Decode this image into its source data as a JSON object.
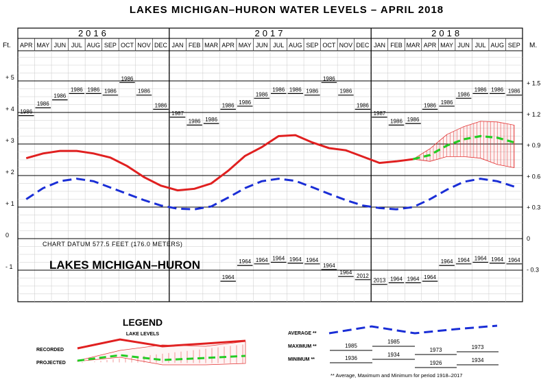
{
  "chart_data": {
    "type": "line",
    "title": "LAKES MICHIGAN–HURON WATER LEVELS – APRIL 2018",
    "left_unit": "Ft.",
    "right_unit": "M.",
    "years": [
      "2016",
      "2017",
      "2018"
    ],
    "months": [
      "APR",
      "MAY",
      "JUN",
      "JUL",
      "AUG",
      "SEP",
      "OCT",
      "NOV",
      "DEC",
      "JAN",
      "FEB",
      "MAR",
      "APR",
      "MAY",
      "JUN",
      "JUL",
      "AUG",
      "SEP",
      "OCT",
      "NOV",
      "DEC",
      "JAN",
      "FEB",
      "MAR",
      "APR",
      "MAY",
      "JUN",
      "JUL",
      "AUG",
      "SEP"
    ],
    "left_ticks": [
      {
        "v": 5,
        "label": "+ 5"
      },
      {
        "v": 4,
        "label": "+ 4"
      },
      {
        "v": 3,
        "label": "+ 3"
      },
      {
        "v": 2,
        "label": "+ 2"
      },
      {
        "v": 1,
        "label": "+ 1"
      },
      {
        "v": 0,
        "label": "0"
      },
      {
        "v": -1,
        "label": "- 1"
      }
    ],
    "right_ticks": [
      {
        "v": 1.5,
        "label": "+ 1.5"
      },
      {
        "v": 1.2,
        "label": "+ 1.2"
      },
      {
        "v": 0.9,
        "label": "+ 0.9"
      },
      {
        "v": 0.6,
        "label": "+ 0.6"
      },
      {
        "v": 0.3,
        "label": "+ 0.3"
      },
      {
        "v": 0,
        "label": "0"
      },
      {
        "v": -0.3,
        "label": "- 0.3"
      }
    ],
    "ylim": [
      -2,
      6.5
    ],
    "recorded": [
      2.55,
      2.7,
      2.78,
      2.78,
      2.7,
      2.57,
      2.3,
      1.95,
      1.68,
      1.53,
      1.58,
      1.75,
      2.15,
      2.62,
      2.9,
      3.25,
      3.28,
      3.05,
      2.87,
      2.8,
      2.6,
      2.4,
      2.45,
      2.52
    ],
    "average": [
      1.25,
      1.6,
      1.82,
      1.9,
      1.82,
      1.62,
      1.42,
      1.22,
      1.05,
      0.95,
      0.93,
      1.02,
      1.3,
      1.6,
      1.82,
      1.9,
      1.83,
      1.63,
      1.42,
      1.22,
      1.05,
      0.97,
      0.93,
      1.0,
      1.25,
      1.55,
      1.8,
      1.9,
      1.82,
      1.65
    ],
    "projected": {
      "start_index": 23,
      "mean": [
        2.52,
        2.65,
        2.95,
        3.15,
        3.25,
        3.2,
        3.05
      ],
      "upper": [
        2.52,
        2.85,
        3.3,
        3.55,
        3.72,
        3.7,
        3.6
      ],
      "lower": [
        2.52,
        2.45,
        2.6,
        2.6,
        2.55,
        2.35,
        2.25
      ]
    },
    "maxima": [
      {
        "year": "1986",
        "v": 3.9
      },
      {
        "year": "1986",
        "v": 4.15
      },
      {
        "year": "1986",
        "v": 4.4
      },
      {
        "year": "1986",
        "v": 4.6
      },
      {
        "year": "1986",
        "v": 4.6
      },
      {
        "year": "1986",
        "v": 4.55
      },
      {
        "year": "1986",
        "v": 4.95
      },
      {
        "year": "1986",
        "v": 4.55
      },
      {
        "year": "1986",
        "v": 4.1
      },
      {
        "year": "1987",
        "v": 3.85
      },
      {
        "year": "1986",
        "v": 3.6
      },
      {
        "year": "1986",
        "v": 3.65
      },
      {
        "year": "1986",
        "v": 4.1
      },
      {
        "year": "1986",
        "v": 4.2
      },
      {
        "year": "1986",
        "v": 4.45
      },
      {
        "year": "1986",
        "v": 4.6
      },
      {
        "year": "1986",
        "v": 4.6
      },
      {
        "year": "1986",
        "v": 4.55
      },
      {
        "year": "1986",
        "v": 4.95
      },
      {
        "year": "1986",
        "v": 4.55
      },
      {
        "year": "1986",
        "v": 4.1
      },
      {
        "year": "1987",
        "v": 3.85
      },
      {
        "year": "1986",
        "v": 3.6
      },
      {
        "year": "1986",
        "v": 3.65
      },
      {
        "year": "1986",
        "v": 4.1
      },
      {
        "year": "1986",
        "v": 4.2
      },
      {
        "year": "1986",
        "v": 4.45
      },
      {
        "year": "1986",
        "v": 4.6
      },
      {
        "year": "1986",
        "v": 4.6
      },
      {
        "year": "1986",
        "v": 4.55
      }
    ],
    "minima": [
      {
        "idx": 12,
        "year": "1964",
        "v": -1.35
      },
      {
        "idx": 13,
        "year": "1964",
        "v": -0.85
      },
      {
        "idx": 14,
        "year": "1964",
        "v": -0.8
      },
      {
        "idx": 15,
        "year": "1964",
        "v": -0.75
      },
      {
        "idx": 16,
        "year": "1964",
        "v": -0.78
      },
      {
        "idx": 17,
        "year": "1964",
        "v": -0.8
      },
      {
        "idx": 18,
        "year": "1964",
        "v": -0.98
      },
      {
        "idx": 19,
        "year": "1964",
        "v": -1.2
      },
      {
        "idx": 20,
        "year": "2012",
        "v": -1.3
      },
      {
        "idx": 21,
        "year": "2013",
        "v": -1.45
      },
      {
        "idx": 22,
        "year": "1964",
        "v": -1.4
      },
      {
        "idx": 23,
        "year": "1964",
        "v": -1.4
      },
      {
        "idx": 24,
        "year": "1964",
        "v": -1.35
      },
      {
        "idx": 25,
        "year": "1964",
        "v": -0.85
      },
      {
        "idx": 26,
        "year": "1964",
        "v": -0.8
      },
      {
        "idx": 27,
        "year": "1964",
        "v": -0.75
      },
      {
        "idx": 28,
        "year": "1964",
        "v": -0.78
      },
      {
        "idx": 29,
        "year": "1964",
        "v": -0.8
      }
    ],
    "datum_note": "CHART DATUM  577.5 FEET (176.0 METERS)",
    "lake_name": "LAKES MICHIGAN–HURON"
  },
  "legend": {
    "title": "LEGEND",
    "subtitle": "LAKE LEVELS",
    "recorded": "RECORDED",
    "projected": "PROJECTED",
    "average": "AVERAGE **",
    "maximum": "MAXIMUM **",
    "minimum": "MINIMUM **",
    "max_years": [
      "1985",
      "1985",
      "1973",
      "1973"
    ],
    "min_years": [
      "1936",
      "1934",
      "1926",
      "1934"
    ],
    "footnote": "** Average, Maximum and Minimum for period 1918–2017"
  }
}
